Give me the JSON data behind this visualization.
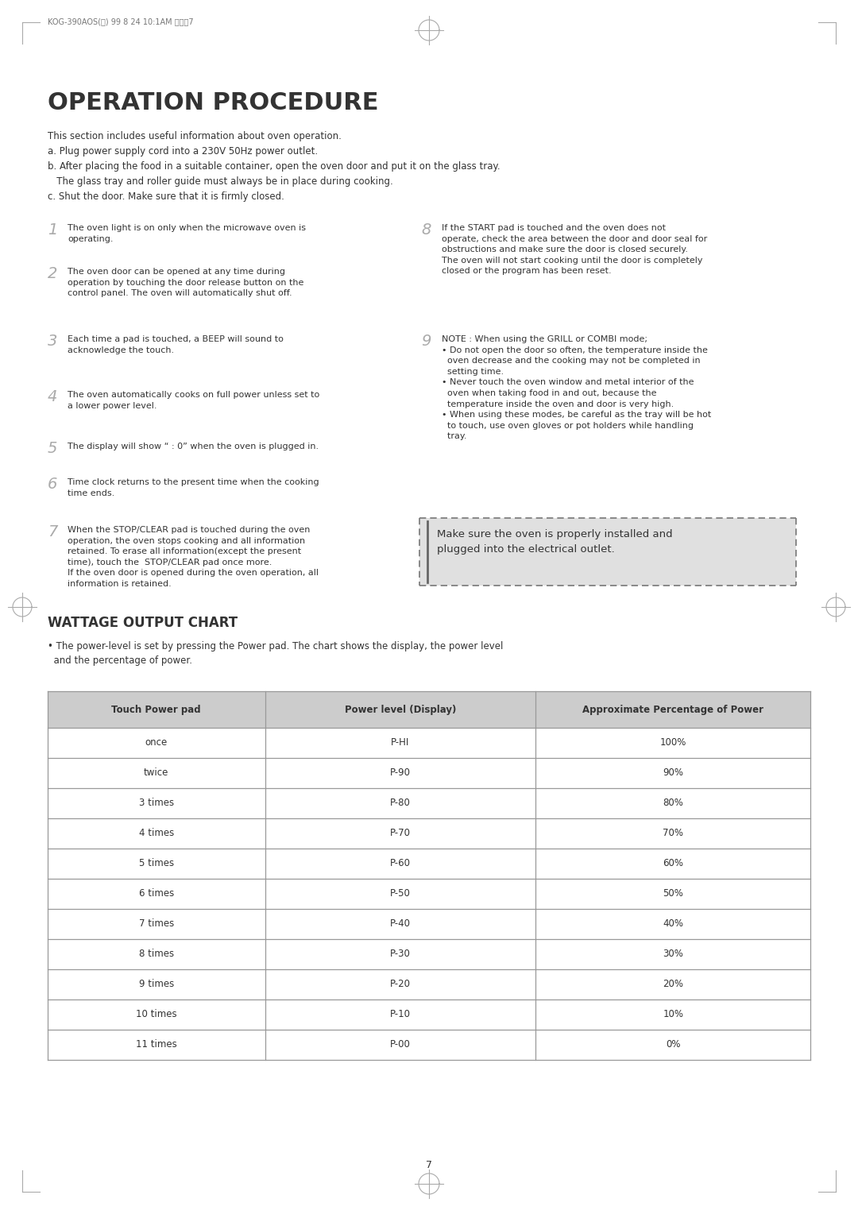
{
  "page_label": "KOG-390AOS(엔) 99 8 24 10:1AM 페이지7",
  "page_number": "7",
  "title": "OPERATION PROCEDURE",
  "intro_lines": [
    "This section includes useful information about oven operation.",
    "a. Plug power supply cord into a 230V 50Hz power outlet.",
    "b. After placing the food in a suitable container, open the oven door and put it on the glass tray.",
    "   The glass tray and roller guide must always be in place during cooking.",
    "c. Shut the door. Make sure that it is firmly closed."
  ],
  "left_steps": [
    {
      "num": "1",
      "text": "The oven light is on only when the microwave oven is\noperating."
    },
    {
      "num": "2",
      "text": "The oven door can be opened at any time during\noperation by touching the door release button on the\ncontrol panel. The oven will automatically shut off."
    },
    {
      "num": "3",
      "text": "Each time a pad is touched, a BEEP will sound to\nacknowledge the touch."
    },
    {
      "num": "4",
      "text": "The oven automatically cooks on full power unless set to\na lower power level."
    },
    {
      "num": "5",
      "text": "The display will show “ : 0” when the oven is plugged in."
    },
    {
      "num": "6",
      "text": "Time clock returns to the present time when the cooking\ntime ends."
    },
    {
      "num": "7",
      "text": "When the STOP/CLEAR pad is touched during the oven\noperation, the oven stops cooking and all information\nretained. To erase all information(except the present\ntime), touch the  STOP/CLEAR pad once more.\nIf the oven door is opened during the oven operation, all\ninformation is retained."
    }
  ],
  "right_steps": [
    {
      "num": "8",
      "text": "If the START pad is touched and the oven does not\noperate, check the area between the door and door seal for\nobstructions and make sure the door is closed securely.\nThe oven will not start cooking until the door is completely\nclosed or the program has been reset."
    },
    {
      "num": "9",
      "text": "NOTE : When using the GRILL or COMBI mode;\n• Do not open the door so often, the temperature inside the\n  oven decrease and the cooking may not be completed in\n  setting time.\n• Never touch the oven window and metal interior of the\n  oven when taking food in and out, because the\n  temperature inside the oven and door is very high.\n• When using these modes, be careful as the tray will be hot\n  to touch, use oven gloves or pot holders while handling\n  tray."
    }
  ],
  "warning_box_text": "Make sure the oven is properly installed and\nplugged into the electrical outlet.",
  "wattage_title": "WATTAGE OUTPUT CHART",
  "wattage_bullet": "• The power-level is set by pressing the Power pad. The chart shows the display, the power level\n  and the percentage of power.",
  "table_headers": [
    "Touch Power pad",
    "Power level (Display)",
    "Approximate Percentage of Power"
  ],
  "table_rows": [
    [
      "once",
      "P-HI",
      "100%"
    ],
    [
      "twice",
      "P-90",
      "90%"
    ],
    [
      "3 times",
      "P-80",
      "80%"
    ],
    [
      "4 times",
      "P-70",
      "70%"
    ],
    [
      "5 times",
      "P-60",
      "60%"
    ],
    [
      "6 times",
      "P-50",
      "50%"
    ],
    [
      "7 times",
      "P-40",
      "40%"
    ],
    [
      "8 times",
      "P-30",
      "30%"
    ],
    [
      "9 times",
      "P-20",
      "20%"
    ],
    [
      "10 times",
      "P-10",
      "10%"
    ],
    [
      "11 times",
      "P-00",
      "0%"
    ]
  ],
  "bg_color": "#ffffff",
  "text_color": "#333333",
  "header_bg": "#cccccc",
  "row_bg_white": "#ffffff",
  "border_color": "#999999",
  "title_color": "#333333",
  "num_color": "#aaaaaa",
  "warn_bg": "#e0e0e0",
  "warn_border": "#777777",
  "label_color": "#777777",
  "crosshair_color": "#aaaaaa"
}
